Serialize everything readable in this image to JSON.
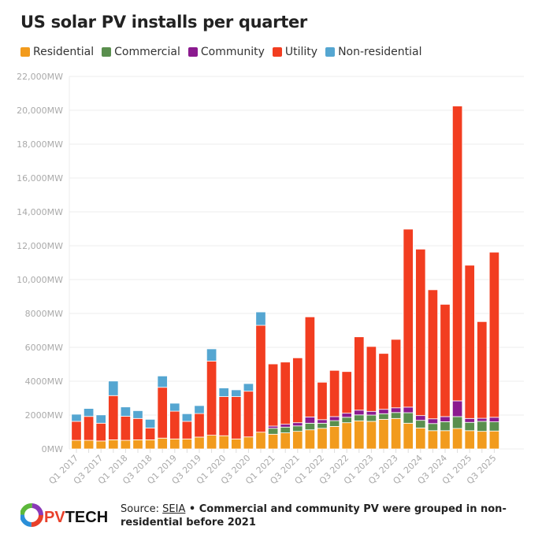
{
  "chart_data": {
    "type": "bar",
    "stacked": true,
    "title": "US solar PV installs per quarter",
    "categories": [
      "Q1 2017",
      "Q2 2017",
      "Q3 2017",
      "Q4 2017",
      "Q1 2018",
      "Q2 2018",
      "Q3 2018",
      "Q4 2018",
      "Q1 2019",
      "Q2 2019",
      "Q3 2019",
      "Q4 2019",
      "Q1 2020",
      "Q2 2020",
      "Q3 2020",
      "Q4 2020",
      "Q1 2021",
      "Q2 2021",
      "Q3 2021",
      "Q4 2021",
      "Q1 2022",
      "Q2 2022",
      "Q3 2022",
      "Q4 2022",
      "Q1 2023",
      "Q2 2023",
      "Q3 2023",
      "Q4 2023",
      "Q1 2024",
      "Q2 2024",
      "Q3 2024",
      "Q4 2024",
      "Q1 2025",
      "Q2 2025",
      "Q3 2025"
    ],
    "series": [
      {
        "name": "Residential",
        "color": "#f29b1d",
        "values": [
          510,
          510,
          470,
          540,
          510,
          540,
          540,
          640,
          590,
          590,
          700,
          810,
          780,
          590,
          710,
          990,
          870,
          950,
          1040,
          1130,
          1220,
          1330,
          1550,
          1660,
          1630,
          1750,
          1800,
          1520,
          1240,
          1080,
          1080,
          1210,
          1080,
          1040,
          1060
        ]
      },
      {
        "name": "Commercial",
        "color": "#5a8f4e",
        "values": [
          0,
          0,
          0,
          0,
          0,
          0,
          0,
          0,
          0,
          0,
          0,
          0,
          0,
          0,
          0,
          0,
          350,
          340,
          320,
          390,
          300,
          340,
          320,
          350,
          370,
          330,
          350,
          620,
          450,
          420,
          530,
          700,
          490,
          590,
          540
        ]
      },
      {
        "name": "Community",
        "color": "#8b1a8f",
        "values": [
          0,
          0,
          0,
          0,
          0,
          0,
          0,
          0,
          0,
          0,
          0,
          0,
          0,
          0,
          0,
          0,
          130,
          170,
          190,
          370,
          210,
          240,
          240,
          280,
          220,
          260,
          280,
          330,
          280,
          280,
          300,
          930,
          230,
          180,
          270
        ]
      },
      {
        "name": "Utility",
        "color": "#f23d20",
        "values": [
          1120,
          1410,
          1050,
          2610,
          1420,
          1260,
          700,
          3000,
          1640,
          1040,
          1390,
          4380,
          2310,
          2500,
          2700,
          6310,
          3670,
          3670,
          3830,
          5910,
          2210,
          2730,
          2460,
          4330,
          3830,
          3300,
          4040,
          10510,
          9830,
          7620,
          6630,
          17410,
          9050,
          5710,
          9750
        ]
      },
      {
        "name": "Non-residential",
        "color": "#55a6d1",
        "values": [
          420,
          470,
          490,
          860,
          550,
          460,
          510,
          670,
          470,
          450,
          470,
          720,
          510,
          400,
          450,
          790,
          0,
          0,
          0,
          0,
          0,
          0,
          0,
          0,
          0,
          0,
          0,
          0,
          0,
          0,
          0,
          0,
          0,
          0,
          0
        ]
      }
    ],
    "ylim": [
      0,
      22000
    ],
    "yticks": [
      0,
      2000,
      4000,
      6000,
      8000,
      10000,
      12000,
      14000,
      16000,
      18000,
      20000,
      22000
    ],
    "ytick_labels": [
      "0MW",
      "2000MW",
      "4000MW",
      "6000MW",
      "8000MW",
      "10,000MW",
      "12,000MW",
      "14,000MW",
      "16,000MW",
      "18,000MW",
      "20,000MW",
      "22,000MW"
    ],
    "xtick_labels": [
      "Q1 2017",
      "Q3 2017",
      "Q1 2018",
      "Q3 2018",
      "Q1 2019",
      "Q3 2019",
      "Q1 2020",
      "Q3 2020",
      "Q1 2021",
      "Q3 2021",
      "Q1 2022",
      "Q3 2022",
      "Q1 2023",
      "Q3 2023",
      "Q1 2024",
      "Q3 2024",
      "Q1 2025",
      "Q3 2025"
    ],
    "grid": true,
    "legend": "top-left"
  },
  "footer": {
    "source_prefix": "Source: ",
    "source_link": "SEIA",
    "note": " • Commercial and community PV were grouped in non-residential before 2021",
    "logo_text": "PVTECH"
  }
}
